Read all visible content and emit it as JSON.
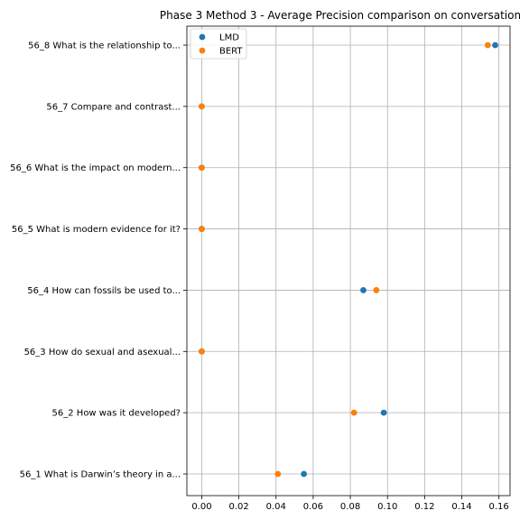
{
  "chart_data": {
    "type": "scatter",
    "title": "Phase 3 Method 3 - Average Precision comparison on conversation",
    "xlabel": "",
    "ylabel": "",
    "xlim": [
      -0.008,
      0.166
    ],
    "x_ticks": [
      0.0,
      0.02,
      0.04,
      0.06,
      0.08,
      0.1,
      0.12,
      0.14,
      0.16
    ],
    "x_tick_labels": [
      "0.00",
      "0.02",
      "0.04",
      "0.06",
      "0.08",
      "0.10",
      "0.12",
      "0.14",
      "0.16"
    ],
    "categories": [
      "56_1 What is Darwin’s theory in a...",
      "56_2 How was it developed?",
      "56_3 How do sexual and asexual...",
      "56_4 How can fossils be used to...",
      "56_5 What is modern evidence for it?",
      "56_6 What is the impact on modern...",
      "56_7 Compare and contrast...",
      "56_8 What is the relationship to..."
    ],
    "grid": true,
    "legend_position": "top-left",
    "series": [
      {
        "name": "LMD",
        "color": "#1f77b4",
        "values": [
          0.055,
          0.098,
          0.0,
          0.087,
          0.0,
          0.0,
          0.0,
          0.158
        ]
      },
      {
        "name": "BERT",
        "color": "#ff7f0e",
        "values": [
          0.041,
          0.082,
          0.0,
          0.094,
          0.0,
          0.0,
          0.0,
          0.154
        ]
      }
    ]
  }
}
